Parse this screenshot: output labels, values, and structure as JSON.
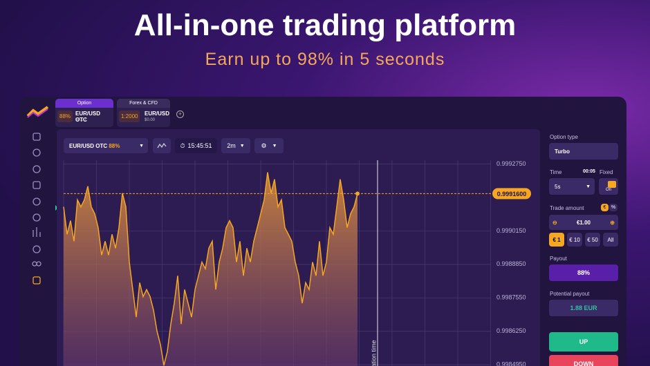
{
  "header": {
    "title": "All-in-one trading platform",
    "subtitle": "Earn up to 98% in 5 seconds"
  },
  "tabs": [
    {
      "header": "Option",
      "badge": "88%",
      "pair": "EUR/USD OTC",
      "balance": "$0.00"
    },
    {
      "header": "Forex & CFD",
      "badge": "1:2000",
      "pair": "EUR/USD",
      "balance": "$0.00"
    }
  ],
  "toolbar": {
    "asset": "EUR/USD OTC",
    "asset_payout": "88%",
    "clock": "15:45:51",
    "timeframe": "2m"
  },
  "chart_data": {
    "type": "line",
    "values": [
      0.999109,
      0.999002,
      0.999055,
      0.998975,
      0.999136,
      0.999109,
      0.999136,
      0.999189,
      0.999109,
      0.999082,
      0.999028,
      0.998921,
      0.998975,
      0.998921,
      0.999002,
      0.998948,
      0.999028,
      0.999162,
      0.999109,
      0.998894,
      0.998787,
      0.99868,
      0.998814,
      0.99876,
      0.998787,
      0.99876,
      0.998707,
      0.998626,
      0.998573,
      0.998492,
      0.998546,
      0.998653,
      0.998734,
      0.998841,
      0.998653,
      0.998787,
      0.998734,
      0.99868,
      0.998787,
      0.998841,
      0.998894,
      0.998868,
      0.998948,
      0.998975,
      0.998787,
      0.998894,
      0.998948,
      0.999028,
      0.999055,
      0.999028,
      0.998894,
      0.998975,
      0.998841,
      0.998948,
      0.998894,
      0.998975,
      0.999028,
      0.999082,
      0.999136,
      0.999243,
      0.999162,
      0.999216,
      0.999109,
      0.999136,
      0.999028,
      0.999002,
      0.998975,
      0.998894,
      0.998841,
      0.998734,
      0.998814,
      0.998787,
      0.998894,
      0.998841,
      0.998975,
      0.998841,
      0.998894,
      0.999028,
      0.999002,
      0.999109,
      0.999216,
      0.999136,
      0.999028,
      0.999082,
      0.999109,
      0.99916
    ],
    "color": "#f5a623",
    "ylim": [
      0.99849,
      0.99929
    ],
    "yticks": [
      {
        "value": 0.999275,
        "label": "0.9992750"
      },
      {
        "value": 0.999015,
        "label": "0.9990150"
      },
      {
        "value": 0.998885,
        "label": "0.9988850"
      },
      {
        "value": 0.998755,
        "label": "0.9987550"
      },
      {
        "value": 0.998625,
        "label": "0.9986250"
      },
      {
        "value": 0.998495,
        "label": "0.9984950"
      }
    ],
    "current_price": {
      "value": 0.99916,
      "label": "0.9991600"
    },
    "annotation": "Expiration time",
    "grid": true
  },
  "panel": {
    "option_type_label": "Option type",
    "option_type": "Turbo",
    "time_label": "Time",
    "time_countdown": "00:05",
    "fixed_label": "Fixed",
    "time_value": "5s",
    "toggle": "On",
    "amount_label": "Trade amount",
    "currency_toggle": "€",
    "percent_toggle": "%",
    "amount": "€1.00",
    "presets": [
      "€ 1",
      "€ 10",
      "€ 50",
      "All"
    ],
    "payout_label": "Payout",
    "payout": "88%",
    "potential_label": "Potential payout",
    "potential": "1.88 EUR",
    "up": "UP",
    "down": "DOWN"
  }
}
